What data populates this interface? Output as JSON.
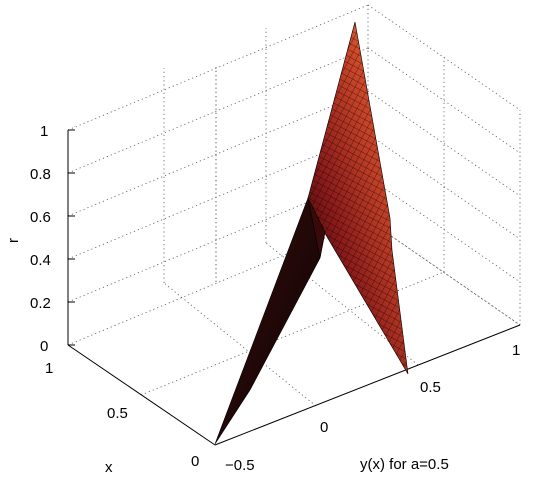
{
  "chart_data": {
    "type": "surface3d",
    "title": "",
    "xlabel": "x",
    "ylabel": "y(x) for a=0.5",
    "zlabel": "r",
    "x_ticks": [
      "0",
      "0.5",
      "1"
    ],
    "y_ticks": [
      "−0.5",
      "0",
      "0.5",
      "1"
    ],
    "z_ticks": [
      "0",
      "0.2",
      "0.4",
      "0.6",
      "0.8",
      "1"
    ],
    "xlim": [
      0,
      1
    ],
    "ylim": [
      -0.5,
      1
    ],
    "zlim": [
      0,
      1
    ],
    "grid": true,
    "colormap": [
      "#000000",
      "#8a1a1a",
      "#d85a2a",
      "#e8e84a"
    ],
    "surface_vertices": {
      "apex": {
        "x": 1,
        "y": 0.5,
        "r": 1
      },
      "ridge_left": {
        "x": 0.62,
        "y": -0.5,
        "r": 0.63
      },
      "ridge_right": {
        "x": 0.62,
        "y": 0.5,
        "r": 0.57
      },
      "base_left": {
        "x": 0,
        "y": -0.5,
        "r": 0
      },
      "base_right": {
        "x": 0,
        "y": 0.5,
        "r": 0
      }
    }
  }
}
